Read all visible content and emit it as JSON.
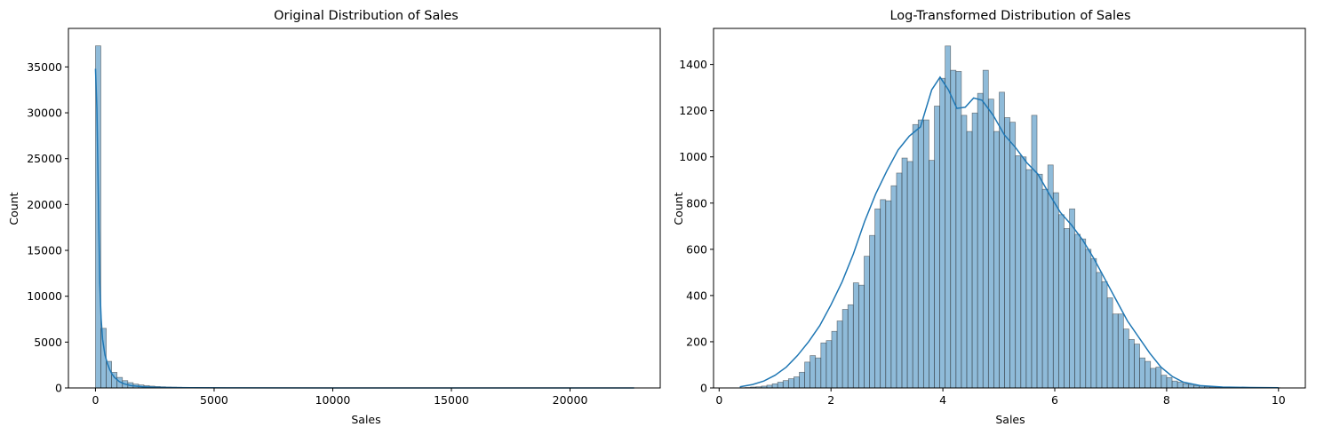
{
  "chart_data": [
    {
      "type": "bar",
      "title": "Original Distribution of Sales",
      "xlabel": "Sales",
      "ylabel": "Count",
      "xlim": [
        -1140,
        23800
      ],
      "ylim": [
        0,
        39200
      ],
      "xticks": [
        0,
        5000,
        10000,
        15000,
        20000
      ],
      "yticks": [
        0,
        5000,
        10000,
        15000,
        20000,
        25000,
        30000,
        35000
      ],
      "bin_width": 227,
      "bins_start": 0,
      "counts": [
        37300,
        6500,
        2900,
        1700,
        1150,
        800,
        580,
        420,
        330,
        260,
        200,
        160,
        130,
        105,
        90,
        75,
        62,
        52,
        45,
        38,
        32,
        28,
        24,
        20,
        17,
        14,
        12,
        10,
        9,
        8,
        7,
        6,
        5,
        5,
        4,
        4,
        3,
        3,
        3,
        2,
        2,
        2,
        2,
        2,
        2,
        1,
        1,
        1,
        1,
        1,
        1,
        1,
        1,
        1,
        1,
        1,
        1,
        1,
        1,
        1,
        1,
        1,
        1,
        1,
        1,
        1,
        1,
        1,
        1,
        1,
        1,
        1,
        1,
        1,
        1,
        1,
        1,
        1,
        1,
        1,
        1,
        1,
        1,
        1,
        1,
        1,
        1,
        1,
        1,
        1,
        1,
        1,
        1,
        1,
        1,
        1,
        1,
        1,
        1,
        1
      ],
      "kde": {
        "x": [
          0,
          60,
          120,
          180,
          240,
          300,
          400,
          500,
          600,
          700,
          800,
          1000,
          1200,
          1500,
          2000,
          2500,
          3000,
          4000,
          6000,
          10000,
          15000,
          20000,
          22700
        ],
        "y": [
          34800,
          30500,
          21000,
          11500,
          7500,
          5300,
          3600,
          2700,
          2000,
          1500,
          1150,
          700,
          450,
          250,
          120,
          70,
          45,
          25,
          12,
          6,
          3,
          2,
          1
        ]
      },
      "color": "#1f77b4"
    },
    {
      "type": "bar",
      "title": "Log-Transformed Distribution of Sales",
      "xlabel": "Sales",
      "ylabel": "Count",
      "xlim": [
        -0.1,
        10.48
      ],
      "ylim": [
        0,
        1556
      ],
      "xticks": [
        0,
        2,
        4,
        6,
        8,
        10
      ],
      "yticks": [
        0,
        200,
        400,
        600,
        800,
        1000,
        1200,
        1400
      ],
      "bin_width": 0.0966,
      "bins_start": 0.37,
      "counts": [
        1,
        2,
        4,
        5,
        8,
        12,
        18,
        25,
        32,
        40,
        48,
        68,
        112,
        140,
        130,
        195,
        205,
        245,
        290,
        340,
        360,
        455,
        445,
        570,
        660,
        775,
        815,
        810,
        875,
        930,
        995,
        980,
        1140,
        1160,
        1160,
        985,
        1220,
        1340,
        1480,
        1375,
        1370,
        1180,
        1110,
        1190,
        1275,
        1375,
        1250,
        1110,
        1280,
        1170,
        1150,
        1005,
        1000,
        945,
        1180,
        925,
        860,
        965,
        845,
        750,
        690,
        775,
        665,
        645,
        600,
        560,
        500,
        460,
        390,
        320,
        320,
        255,
        210,
        190,
        130,
        115,
        85,
        90,
        55,
        45,
        30,
        25,
        18,
        15,
        10,
        8,
        5,
        4,
        3,
        2,
        2,
        1,
        1,
        1,
        1,
        1,
        1,
        1,
        1,
        1
      ],
      "kde": {
        "x": [
          0.37,
          0.6,
          0.8,
          1.0,
          1.2,
          1.4,
          1.6,
          1.8,
          2.0,
          2.2,
          2.4,
          2.6,
          2.8,
          3.0,
          3.2,
          3.4,
          3.6,
          3.8,
          3.95,
          4.1,
          4.25,
          4.4,
          4.55,
          4.7,
          4.9,
          5.1,
          5.3,
          5.5,
          5.7,
          5.9,
          6.1,
          6.3,
          6.5,
          6.7,
          6.9,
          7.1,
          7.3,
          7.5,
          7.7,
          7.9,
          8.1,
          8.3,
          8.6,
          9.0,
          9.5,
          10.0
        ],
        "y": [
          5,
          15,
          30,
          55,
          90,
          140,
          200,
          270,
          360,
          460,
          580,
          720,
          840,
          940,
          1030,
          1090,
          1130,
          1290,
          1345,
          1290,
          1210,
          1215,
          1255,
          1245,
          1180,
          1095,
          1040,
          975,
          925,
          840,
          760,
          705,
          640,
          560,
          470,
          380,
          290,
          220,
          150,
          90,
          50,
          25,
          10,
          4,
          2,
          1
        ]
      },
      "color": "#1f77b4"
    }
  ]
}
